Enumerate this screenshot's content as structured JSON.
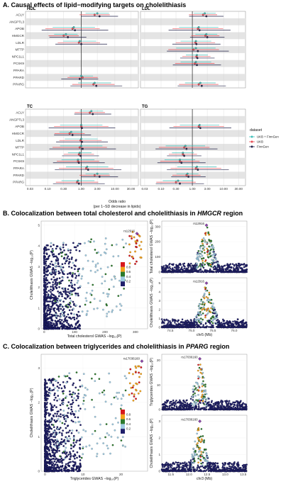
{
  "panelA": {
    "title": "A. Causal effects of lipid−modifying targets on cholelithiasis",
    "xlabel": "Odds ratio",
    "xlabel2": "(per 1−SD decrease in lipids)",
    "legend_title": "dataset",
    "legend_items": [
      {
        "name": "UKB + FinnGen",
        "color": "#3fbfb9"
      },
      {
        "name": "UKB",
        "color": "#e64c55"
      },
      {
        "name": "FinnGen",
        "color": "#23234a"
      }
    ]
  },
  "panelB": {
    "title_pre": "B. Colocalization between total cholesterol and cholelithiasis in ",
    "title_gene": "HMGCR",
    "title_post": " region",
    "lead_snp": "rs12916",
    "scatter_xlabel": "Total cholesterol GWAS −log₁₀(P)",
    "scatter_ylabel": "Cholelithiasis GWAS −log₁₀(P)",
    "top_ylabel": "Total cholesterol GWAS −log₁₀(P)",
    "bottom_ylabel": "Cholelithiasis GWAS −log₁₀(P)",
    "chr_xlabel": "chr5 (Mb)"
  },
  "panelC": {
    "title_pre": "C. Colocalization between triglycerides and cholelithiasis in ",
    "title_gene": "PPARG",
    "title_post": " region",
    "lead_snp": "rs17036160",
    "scatter_xlabel": "Triglycerides GWAS −log₁₀(P)",
    "scatter_ylabel": "Cholelithiasis GWAS −log₁₀(P)",
    "top_ylabel": "Triglycerides GWAS −log₁₀(P)",
    "bottom_ylabel": "Cholelithiasis GWAS −log₁₀(P)",
    "chr_xlabel": "chr3 (Mb)"
  },
  "ld_colorbar": {
    "labels": [
      "0.8",
      "0.6",
      "0.4",
      "0.2"
    ],
    "colors": [
      "#d7191c",
      "#f4a21b",
      "#2c7a2c",
      "#9ecae1",
      "#1f1f6b"
    ]
  },
  "chart_data": [
    {
      "type": "forest",
      "panel": "A",
      "targets": [
        "ACLY",
        "ANGPTL3",
        "APOB",
        "HMGCR",
        "LDLR",
        "MTTP",
        "NPC1L1",
        "PCSK9",
        "PPARA",
        "PPARD",
        "PPARG"
      ],
      "facets": [
        "HDL",
        "LDL",
        "TC",
        "TG"
      ],
      "x_scale": "log",
      "x_ticks": [
        "0.03",
        "0.10",
        "0.30",
        "1.00",
        "3.00",
        "10.00",
        "30.00"
      ],
      "series": [
        {
          "name": "UKB + FinnGen",
          "facet_values": {
            "HDL": {
              "ACLY": 3.0,
              "ANGPTL3": null,
              "APOB": 0.6,
              "HMGCR": 0.35,
              "LDLR": 0.9,
              "MTTP": null,
              "NPC1L1": null,
              "PCSK9": null,
              "PPARA": null,
              "PPARD": 1.0,
              "PPARG": 2.5
            },
            "LDL": {
              "ACLY": 2.5,
              "ANGPTL3": null,
              "APOB": 1.6,
              "HMGCR": 2.8,
              "LDLR": 1.3,
              "MTTP": 1.3,
              "NPC1L1": 1.4,
              "PCSK9": 1.3,
              "PPARA": null,
              "PPARD": null,
              "PPARG": 1.8
            },
            "TC": {
              "ACLY": 2.0,
              "ANGPTL3": null,
              "APOB": 1.0,
              "HMGCR": 0.5,
              "LDLR": 1.0,
              "MTTP": 1.0,
              "NPC1L1": 0.9,
              "PCSK9": 0.8,
              "PPARA": 1.5,
              "PPARD": 3.0,
              "PPARG": 0.8
            },
            "TG": {
              "ACLY": null,
              "ANGPTL3": null,
              "APOB": 1.7,
              "HMGCR": null,
              "LDLR": null,
              "MTTP": 0.6,
              "NPC1L1": 0.5,
              "PCSK9": 0.4,
              "PPARA": 1.4,
              "PPARD": 0.7,
              "PPARG": 0.35
            }
          }
        },
        {
          "name": "UKB",
          "facet_values": {
            "HDL": {
              "ACLY": 2.5,
              "ANGPTL3": null,
              "APOB": 0.55,
              "HMGCR": 0.3,
              "LDLR": 0.85,
              "MTTP": null,
              "NPC1L1": null,
              "PCSK9": null,
              "PPARA": null,
              "PPARD": 1.1,
              "PPARG": 2.3
            },
            "LDL": {
              "ACLY": 2.2,
              "ANGPTL3": null,
              "APOB": 1.5,
              "HMGCR": 2.6,
              "LDLR": 1.25,
              "MTTP": 1.1,
              "NPC1L1": 1.35,
              "PCSK9": 1.2,
              "PPARA": null,
              "PPARD": null,
              "PPARG": 1.6
            },
            "TC": {
              "ACLY": 1.8,
              "ANGPTL3": null,
              "APOB": 1.0,
              "HMGCR": 0.45,
              "LDLR": 0.95,
              "MTTP": 0.9,
              "NPC1L1": 0.85,
              "PCSK9": 0.8,
              "PPARA": 1.4,
              "PPARD": 2.5,
              "PPARG": 0.75
            },
            "TG": {
              "ACLY": null,
              "ANGPTL3": null,
              "APOB": 1.6,
              "HMGCR": null,
              "LDLR": null,
              "MTTP": 0.55,
              "NPC1L1": 0.5,
              "PCSK9": 0.4,
              "PPARA": 1.3,
              "PPARD": 0.65,
              "PPARG": 0.3
            }
          }
        },
        {
          "name": "FinnGen",
          "facet_values": {
            "HDL": {
              "ACLY": 3.5,
              "ANGPTL3": null,
              "APOB": 0.65,
              "HMGCR": 0.4,
              "LDLR": 1.0,
              "MTTP": null,
              "NPC1L1": null,
              "PCSK9": null,
              "PPARA": null,
              "PPARD": 0.9,
              "PPARG": 2.8
            },
            "LDL": {
              "ACLY": 2.8,
              "ANGPTL3": null,
              "APOB": 1.7,
              "HMGCR": 3.0,
              "LDLR": 1.35,
              "MTTP": 1.5,
              "NPC1L1": 1.45,
              "PCSK9": 1.4,
              "PPARA": null,
              "PPARD": null,
              "PPARG": 2.0
            },
            "TC": {
              "ACLY": 2.2,
              "ANGPTL3": null,
              "APOB": 1.05,
              "HMGCR": 0.55,
              "LDLR": 1.05,
              "MTTP": 1.1,
              "NPC1L1": 0.95,
              "PCSK9": 0.85,
              "PPARA": 1.6,
              "PPARD": 3.5,
              "PPARG": 0.85
            },
            "TG": {
              "ACLY": null,
              "ANGPTL3": null,
              "APOB": 1.8,
              "HMGCR": null,
              "LDLR": null,
              "MTTP": 0.65,
              "NPC1L1": 0.55,
              "PCSK9": 0.45,
              "PPARA": 1.5,
              "PPARD": 0.75,
              "PPARG": 0.4
            }
          }
        }
      ]
    },
    {
      "type": "scatter",
      "panel": "B",
      "x_ticks": [
        "0",
        "100",
        "200",
        "300"
      ],
      "y_ticks": [
        "0",
        "1",
        "2",
        "3",
        "4",
        "5"
      ],
      "xlim": [
        -10,
        340
      ],
      "ylim": [
        0,
        5.2
      ]
    },
    {
      "type": "scatter",
      "panel": "B-locus",
      "x_ticks": [
        "74.5",
        "75.0",
        "75.5",
        "76.0"
      ],
      "top_y_ticks": [
        "0",
        "100",
        "200",
        "300"
      ],
      "bottom_y_ticks": [
        "0",
        "1",
        "2",
        "3",
        "4",
        "5"
      ],
      "xlim": [
        74.3,
        76.3
      ]
    },
    {
      "type": "scatter",
      "panel": "C",
      "x_ticks": [
        "0",
        "10",
        "20"
      ],
      "y_ticks": [
        "0",
        "1",
        "2",
        "3"
      ],
      "xlim": [
        -1,
        27
      ],
      "ylim": [
        0,
        3.4
      ]
    },
    {
      "type": "scatter",
      "panel": "C-locus",
      "x_ticks": [
        "11.5",
        "12.0",
        "12.5",
        "13.0",
        "13.5"
      ],
      "top_y_ticks": [
        "0",
        "10",
        "20"
      ],
      "bottom_y_ticks": [
        "0",
        "1",
        "2",
        "3"
      ],
      "xlim": [
        11.25,
        13.6
      ]
    }
  ]
}
